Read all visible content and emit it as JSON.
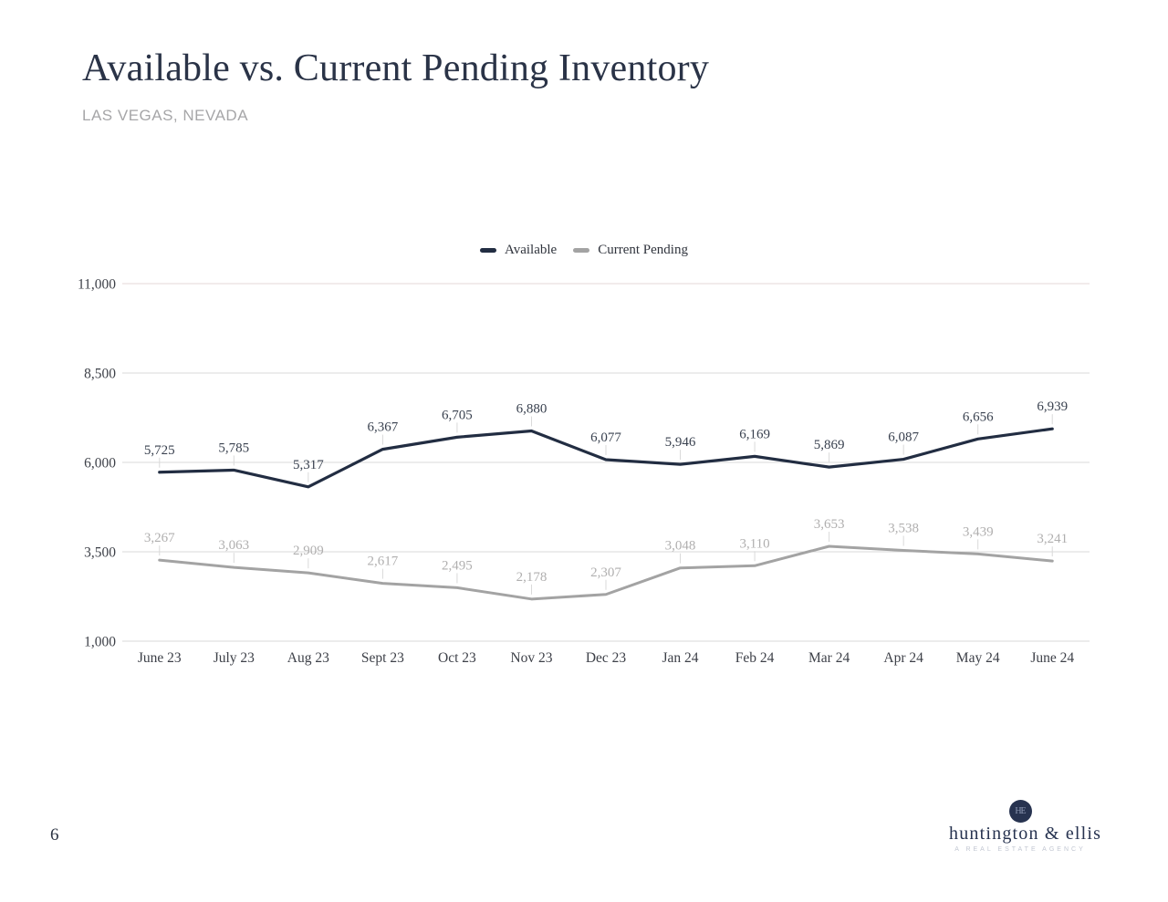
{
  "page": {
    "number": "6"
  },
  "header": {
    "title": "Available vs. Current Pending Inventory",
    "subtitle": "LAS VEGAS, NEVADA"
  },
  "footer": {
    "monogram": "HE",
    "brand_name": "huntington & ellis",
    "brand_tagline": "A REAL ESTATE AGENCY"
  },
  "colors": {
    "accent_navy": "#273350",
    "grid": "#d9d9d9",
    "grid_top": "#e6d7d7",
    "axis_text": "#3d4048",
    "subtitle_gray": "#a6a6a8"
  },
  "chart_data": {
    "type": "line",
    "title": "Available vs. Current Pending Inventory",
    "subtitle": "LAS VEGAS, NEVADA",
    "categories": [
      "June 23",
      "July 23",
      "Aug 23",
      "Sept 23",
      "Oct 23",
      "Nov 23",
      "Dec 23",
      "Jan 24",
      "Feb 24",
      "Mar 24",
      "Apr 24",
      "May 24",
      "June 24"
    ],
    "series": [
      {
        "name": "Available",
        "color": "#222d42",
        "label_color": "#39414f",
        "values": [
          5725,
          5785,
          5317,
          6367,
          6705,
          6880,
          6077,
          5946,
          6169,
          5869,
          6087,
          6656,
          6939
        ]
      },
      {
        "name": "Current Pending",
        "color": "#a3a3a3",
        "label_color": "#b0afaf",
        "values": [
          3267,
          3063,
          2909,
          2617,
          2495,
          2178,
          2307,
          3048,
          3110,
          3653,
          3538,
          3439,
          3241
        ]
      }
    ],
    "ylim": [
      1000,
      11000
    ],
    "yticks": [
      11000,
      8500,
      6000,
      3500,
      1000
    ],
    "ytick_labels": [
      "11,000",
      "8,500",
      "6,000",
      "3,500",
      "1,000"
    ],
    "xlabel": "",
    "ylabel": "",
    "grid": "horizontal",
    "legend_position": "top-center",
    "data_labels": true
  }
}
